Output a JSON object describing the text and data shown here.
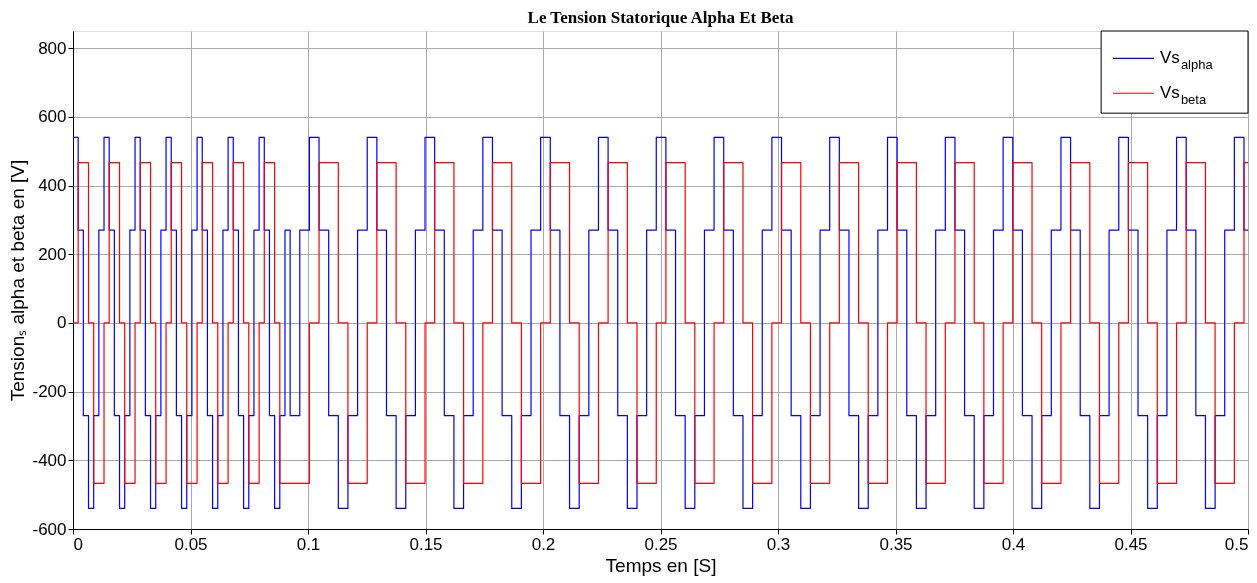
{
  "chart_data": {
    "type": "step",
    "title": "Le Tension Statorique Alpha Et Beta",
    "xlabel": "Temps en [S]",
    "ylabel": "Tensionₛ alpha et beta en [V]",
    "x": [
      0,
      0.0022,
      0.0044,
      0.0066,
      0.0088,
      0.011,
      0.0132,
      0.0154,
      0.0176,
      0.0198,
      0.022,
      0.0242,
      0.0264,
      0.0286,
      0.0308,
      0.033,
      0.0352,
      0.0374,
      0.0396,
      0.0418,
      0.044,
      0.0462,
      0.0484,
      0.0506,
      0.0528,
      0.055,
      0.0572,
      0.0594,
      0.0616,
      0.0638,
      0.066,
      0.0682,
      0.0704,
      0.0726,
      0.0748,
      0.077,
      0.0792,
      0.0814,
      0.0836,
      0.0858,
      0.088,
      0.0902,
      0.0924,
      0.0965,
      0.1006,
      0.1047,
      0.1088,
      0.1129,
      0.117,
      0.1211,
      0.1252,
      0.1293,
      0.1334,
      0.1375,
      0.1416,
      0.1457,
      0.1498,
      0.1539,
      0.158,
      0.1621,
      0.1662,
      0.1703,
      0.1744,
      0.1785,
      0.1826,
      0.1867,
      0.1908,
      0.1949,
      0.199,
      0.2031,
      0.2072,
      0.2113,
      0.2154,
      0.2195,
      0.2236,
      0.2277,
      0.2318,
      0.2359,
      0.24,
      0.2441,
      0.2482,
      0.2523,
      0.2564,
      0.2605,
      0.2646,
      0.2687,
      0.2728,
      0.2769,
      0.281,
      0.2851,
      0.2892,
      0.2933,
      0.2974,
      0.3015,
      0.3056,
      0.3097,
      0.3138,
      0.3179,
      0.322,
      0.3261,
      0.3302,
      0.3343,
      0.3384,
      0.3425,
      0.3466,
      0.3507,
      0.3548,
      0.3589,
      0.363,
      0.3671,
      0.3712,
      0.3753,
      0.3794,
      0.3835,
      0.3876,
      0.3917,
      0.3958,
      0.3999,
      0.404,
      0.4081,
      0.4122,
      0.4163,
      0.4204,
      0.4245,
      0.4286,
      0.4327,
      0.4368,
      0.4409,
      0.445,
      0.4491,
      0.4532,
      0.4573,
      0.4614,
      0.4655,
      0.4696,
      0.4737,
      0.4778,
      0.4819,
      0.486,
      0.4901,
      0.4942,
      0.4983,
      0.5
    ],
    "series": [
      {
        "name": "Vs$_{alpha}$",
        "color": "#0000ff",
        "values": [
          540,
          270,
          -270,
          -540,
          -270,
          270,
          540,
          270,
          -270,
          -540,
          -270,
          270,
          540,
          270,
          -270,
          -540,
          -270,
          270,
          540,
          270,
          -270,
          -540,
          -270,
          270,
          540,
          270,
          -270,
          -540,
          -270,
          270,
          540,
          270,
          -270,
          -540,
          -270,
          270,
          540,
          270,
          -270,
          -540,
          -270,
          270,
          -270,
          270,
          540,
          270,
          -270,
          -540,
          -270,
          270,
          540,
          270,
          -270,
          -540,
          -270,
          270,
          540,
          270,
          -270,
          -540,
          -270,
          270,
          540,
          270,
          -270,
          -540,
          -270,
          270,
          540,
          270,
          -270,
          -540,
          -270,
          270,
          540,
          270,
          -270,
          -540,
          -270,
          270,
          540,
          270,
          -270,
          -540,
          -270,
          270,
          540,
          270,
          -270,
          -540,
          -270,
          270,
          540,
          270,
          -270,
          -540,
          -270,
          270,
          540,
          270,
          -270,
          -540,
          -270,
          270,
          540,
          270,
          -270,
          -540,
          -270,
          270,
          540,
          270,
          -270,
          -540,
          -270,
          270,
          540,
          270,
          -270,
          -540,
          -270,
          270,
          540,
          270,
          -270,
          -540,
          -270,
          270,
          540,
          270,
          -270,
          -540,
          -270,
          270,
          540,
          270,
          -270,
          -540,
          -270,
          270,
          540,
          270,
          270
        ]
      },
      {
        "name": "Vs$_{beta}$",
        "color": "#ff0000",
        "values": [
          0,
          467,
          467,
          0,
          -467,
          -467,
          0,
          467,
          467,
          0,
          -467,
          -467,
          0,
          467,
          467,
          0,
          -467,
          -467,
          0,
          467,
          467,
          0,
          -467,
          -467,
          0,
          467,
          467,
          0,
          -467,
          -467,
          0,
          467,
          467,
          0,
          -467,
          -467,
          0,
          467,
          467,
          0,
          -467,
          -467,
          -467,
          -467,
          0,
          467,
          467,
          0,
          -467,
          -467,
          0,
          467,
          467,
          0,
          -467,
          -467,
          0,
          467,
          467,
          0,
          -467,
          -467,
          0,
          467,
          467,
          0,
          -467,
          -467,
          0,
          467,
          467,
          0,
          -467,
          -467,
          0,
          467,
          467,
          0,
          -467,
          -467,
          0,
          467,
          467,
          0,
          -467,
          -467,
          0,
          467,
          467,
          0,
          -467,
          -467,
          0,
          467,
          467,
          0,
          -467,
          -467,
          0,
          467,
          467,
          0,
          -467,
          -467,
          0,
          467,
          467,
          0,
          -467,
          -467,
          0,
          467,
          467,
          0,
          -467,
          -467,
          0,
          467,
          467,
          0,
          -467,
          -467,
          0,
          467,
          467,
          0,
          -467,
          -467,
          0,
          467,
          467,
          0,
          -467,
          -467,
          0,
          467,
          467,
          0,
          -467,
          -467,
          0,
          467,
          467
        ]
      }
    ],
    "xlim": [
      0,
      0.5
    ],
    "xticks": [
      0,
      0.05,
      0.1,
      0.15,
      0.2,
      0.25,
      0.3,
      0.35,
      0.4,
      0.45,
      0.5
    ],
    "ylim": [
      -600,
      850
    ],
    "yticks": [
      -600,
      -400,
      -200,
      0,
      200,
      400,
      600,
      800
    ],
    "grid": true,
    "legend": "top right"
  }
}
